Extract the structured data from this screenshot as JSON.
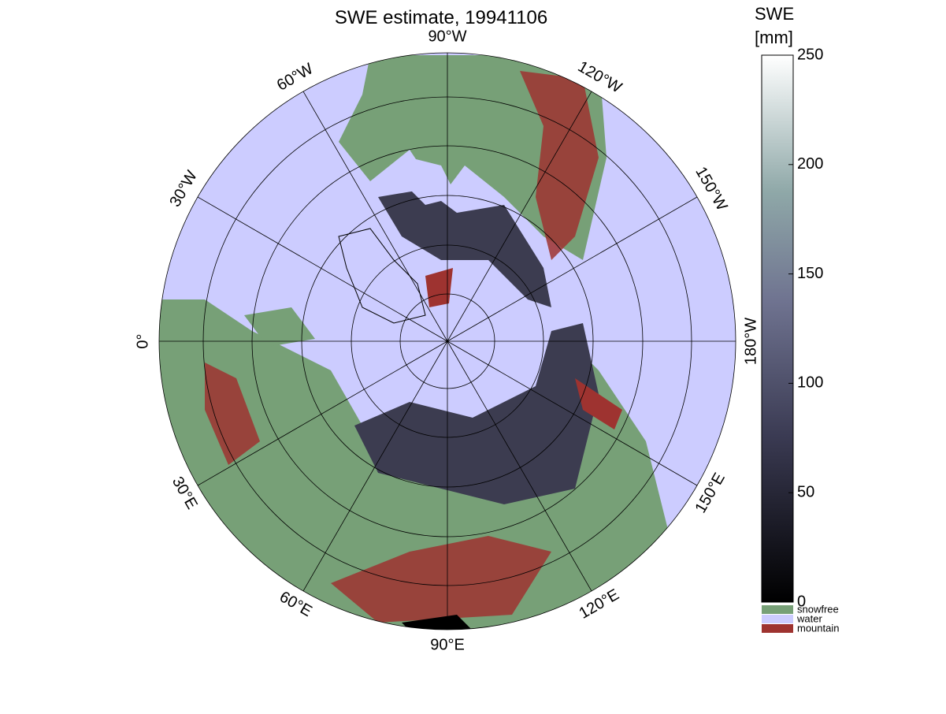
{
  "title": "SWE estimate, 19941106",
  "longitude_labels": [
    "0°",
    "30°E",
    "60°E",
    "90°E",
    "120°E",
    "150°E",
    "180°W",
    "150°W",
    "120°W",
    "90°W",
    "60°W",
    "30°W"
  ],
  "colorbar": {
    "label": [
      "SWE",
      "[mm]"
    ],
    "lim": [
      0,
      250
    ],
    "ticks": [
      0,
      50,
      100,
      150,
      200,
      250
    ]
  },
  "legend": [
    {
      "name": "snowfree",
      "color": "#77a077"
    },
    {
      "name": "water",
      "color": "#ccccff"
    },
    {
      "name": "mountain",
      "color": "#9e3330"
    }
  ]
}
